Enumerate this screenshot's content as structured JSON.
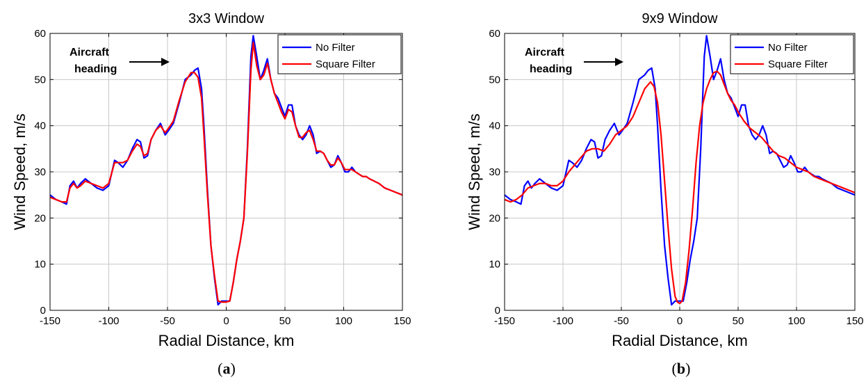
{
  "chart_data": [
    {
      "type": "line",
      "title": "3x3 Window",
      "xlabel": "Radial Distance, km",
      "ylabel": "Wind Speed, m/s",
      "xlim": [
        -150,
        150
      ],
      "ylim": [
        0,
        60
      ],
      "xticks": [
        -150,
        -100,
        -50,
        0,
        50,
        100,
        150
      ],
      "yticks": [
        0,
        10,
        20,
        30,
        40,
        50,
        60
      ],
      "grid": true,
      "legend_position": "top-right",
      "annotation": {
        "line1": "Aircraft",
        "line2": "heading"
      },
      "caption_letter": "a",
      "series": [
        {
          "name": "No Filter",
          "color": "#0000ff",
          "x": [
            -150,
            -145,
            -140,
            -136,
            -133,
            -130,
            -127,
            -124,
            -120,
            -115,
            -110,
            -105,
            -100,
            -95,
            -92,
            -88,
            -84,
            -80,
            -76,
            -73,
            -70,
            -67,
            -64,
            -60,
            -56,
            -52,
            -49,
            -45,
            -40,
            -35,
            -30,
            -27,
            -24,
            -21,
            -19,
            -16,
            -13,
            -10,
            -7,
            -4,
            -2,
            0,
            3,
            6,
            9,
            12,
            15,
            18,
            21,
            23,
            26,
            29,
            32,
            35,
            38,
            41,
            44,
            47,
            50,
            53,
            56,
            59,
            62,
            65,
            68,
            71,
            74,
            77,
            80,
            83,
            86,
            89,
            92,
            95,
            98,
            101,
            104,
            107,
            110,
            113,
            116,
            119,
            122,
            126,
            130,
            135,
            140,
            145,
            150
          ],
          "y": [
            25,
            24,
            23.5,
            23,
            27,
            28,
            26.5,
            27.5,
            28.5,
            27.5,
            26.5,
            26,
            27,
            32.5,
            32,
            31,
            32.5,
            35,
            37,
            36.5,
            33,
            33.5,
            37,
            39,
            40.5,
            38,
            39,
            40.5,
            45,
            50,
            51,
            52,
            52.5,
            48,
            40,
            26,
            14,
            7,
            1.2,
            2,
            2,
            2,
            2,
            6,
            11,
            15,
            20,
            35,
            55,
            59.5,
            55,
            50,
            52,
            54.5,
            50,
            47,
            46,
            44,
            42,
            44.5,
            44.5,
            40,
            38,
            37,
            38,
            40,
            38,
            34,
            34.5,
            34,
            32.5,
            31,
            31.5,
            33.5,
            32,
            30,
            30,
            31,
            30,
            29.5,
            29,
            29,
            28.5,
            28,
            27.5,
            26.5,
            26,
            25.5,
            25
          ]
        },
        {
          "name": "Square Filter",
          "color": "#ff0000",
          "x": [
            -150,
            -145,
            -140,
            -136,
            -133,
            -130,
            -127,
            -124,
            -120,
            -115,
            -110,
            -105,
            -100,
            -95,
            -92,
            -88,
            -84,
            -80,
            -76,
            -73,
            -70,
            -67,
            -64,
            -60,
            -56,
            -52,
            -49,
            -45,
            -40,
            -35,
            -30,
            -27,
            -24,
            -21,
            -19,
            -16,
            -13,
            -10,
            -7,
            -4,
            -2,
            0,
            3,
            6,
            9,
            12,
            15,
            18,
            21,
            23,
            26,
            29,
            32,
            35,
            38,
            41,
            44,
            47,
            50,
            53,
            56,
            59,
            62,
            65,
            68,
            71,
            74,
            77,
            80,
            83,
            86,
            89,
            92,
            95,
            98,
            101,
            104,
            107,
            110,
            113,
            116,
            119,
            122,
            126,
            130,
            135,
            140,
            145,
            150
          ],
          "y": [
            24.5,
            24,
            23.5,
            23.5,
            26.5,
            27.5,
            26.5,
            27,
            28,
            27.5,
            27,
            26.5,
            27.5,
            32,
            32,
            32,
            32.5,
            34.5,
            36,
            35.5,
            33.5,
            34,
            37,
            39,
            40,
            38.5,
            39.5,
            41,
            45.5,
            49.5,
            51.5,
            51.5,
            50.5,
            46,
            38,
            25,
            14,
            7.5,
            2,
            1.8,
            1.8,
            1.8,
            2,
            6,
            11,
            15,
            20,
            34,
            52,
            58,
            53,
            50,
            51,
            53.5,
            50,
            47,
            45,
            43,
            41.5,
            43.5,
            43,
            40,
            37.5,
            37.5,
            38.5,
            39,
            37,
            34.5,
            34.5,
            34,
            32.5,
            31.5,
            31.5,
            33,
            32,
            30.5,
            30.5,
            30.5,
            30,
            29.5,
            29,
            29,
            28.5,
            28,
            27.5,
            26.5,
            26,
            25.5,
            25
          ]
        }
      ]
    },
    {
      "type": "line",
      "title": "9x9 Window",
      "xlabel": "Radial Distance, km",
      "ylabel": "Wind Speed, m/s",
      "xlim": [
        -150,
        150
      ],
      "ylim": [
        0,
        60
      ],
      "xticks": [
        -150,
        -100,
        -50,
        0,
        50,
        100,
        150
      ],
      "yticks": [
        0,
        10,
        20,
        30,
        40,
        50,
        60
      ],
      "grid": true,
      "legend_position": "top-right",
      "annotation": {
        "line1": "Aircraft",
        "line2": "heading"
      },
      "caption_letter": "b",
      "series": [
        {
          "name": "No Filter",
          "color": "#0000ff",
          "x": [
            -150,
            -145,
            -140,
            -136,
            -133,
            -130,
            -127,
            -124,
            -120,
            -115,
            -110,
            -105,
            -100,
            -95,
            -92,
            -88,
            -84,
            -80,
            -76,
            -73,
            -70,
            -67,
            -64,
            -60,
            -56,
            -52,
            -49,
            -45,
            -40,
            -35,
            -30,
            -27,
            -24,
            -21,
            -19,
            -16,
            -13,
            -10,
            -7,
            -4,
            -2,
            0,
            3,
            6,
            9,
            12,
            15,
            18,
            21,
            23,
            26,
            29,
            32,
            35,
            38,
            41,
            44,
            47,
            50,
            53,
            56,
            59,
            62,
            65,
            68,
            71,
            74,
            77,
            80,
            83,
            86,
            89,
            92,
            95,
            98,
            101,
            104,
            107,
            110,
            113,
            116,
            119,
            122,
            126,
            130,
            135,
            140,
            145,
            150
          ],
          "y": [
            25,
            24,
            23.5,
            23,
            27,
            28,
            26.5,
            27.5,
            28.5,
            27.5,
            26.5,
            26,
            27,
            32.5,
            32,
            31,
            32.5,
            35,
            37,
            36.5,
            33,
            33.5,
            37,
            39,
            40.5,
            38,
            39,
            40.5,
            45,
            50,
            51,
            52,
            52.5,
            48,
            40,
            26,
            14,
            7,
            1.2,
            2,
            2,
            2,
            2,
            6,
            11,
            15,
            20,
            35,
            55,
            59.5,
            55,
            50,
            52,
            54.5,
            50,
            47,
            46,
            44,
            42,
            44.5,
            44.5,
            40,
            38,
            37,
            38,
            40,
            38,
            34,
            34.5,
            34,
            32.5,
            31,
            31.5,
            33.5,
            32,
            30,
            30,
            31,
            30,
            29.5,
            29,
            29,
            28.5,
            28,
            27.5,
            26.5,
            26,
            25.5,
            25
          ]
        },
        {
          "name": "Square Filter",
          "color": "#ff0000",
          "x": [
            -150,
            -145,
            -140,
            -135,
            -130,
            -125,
            -120,
            -115,
            -110,
            -105,
            -100,
            -95,
            -90,
            -85,
            -80,
            -75,
            -70,
            -65,
            -60,
            -55,
            -50,
            -45,
            -40,
            -35,
            -30,
            -25,
            -22,
            -19,
            -16,
            -13,
            -10,
            -7,
            -4,
            -2,
            0,
            2,
            5,
            8,
            11,
            14,
            17,
            20,
            23,
            26,
            29,
            32,
            35,
            38,
            41,
            44,
            47,
            50,
            55,
            60,
            65,
            70,
            75,
            80,
            85,
            90,
            95,
            100,
            105,
            110,
            115,
            120,
            125,
            130,
            135,
            140,
            145,
            150
          ],
          "y": [
            24,
            23.5,
            24,
            25,
            26.5,
            27,
            27.5,
            27.5,
            27,
            27,
            28,
            30,
            31.5,
            33,
            34.5,
            35,
            35,
            34.5,
            36,
            38,
            39,
            40,
            42,
            45,
            48,
            49.5,
            48.5,
            45,
            38,
            28,
            18,
            9,
            3,
            1.8,
            1.5,
            2,
            6,
            13,
            22,
            32,
            40,
            45,
            48,
            50,
            51.5,
            51.8,
            51,
            49,
            47,
            45.5,
            44.5,
            43,
            41,
            39.5,
            38.5,
            37.5,
            36,
            34.5,
            33.5,
            33,
            32,
            31,
            30.5,
            30,
            29,
            28.5,
            28,
            27.5,
            27,
            26.5,
            26,
            25.5
          ]
        }
      ]
    }
  ]
}
